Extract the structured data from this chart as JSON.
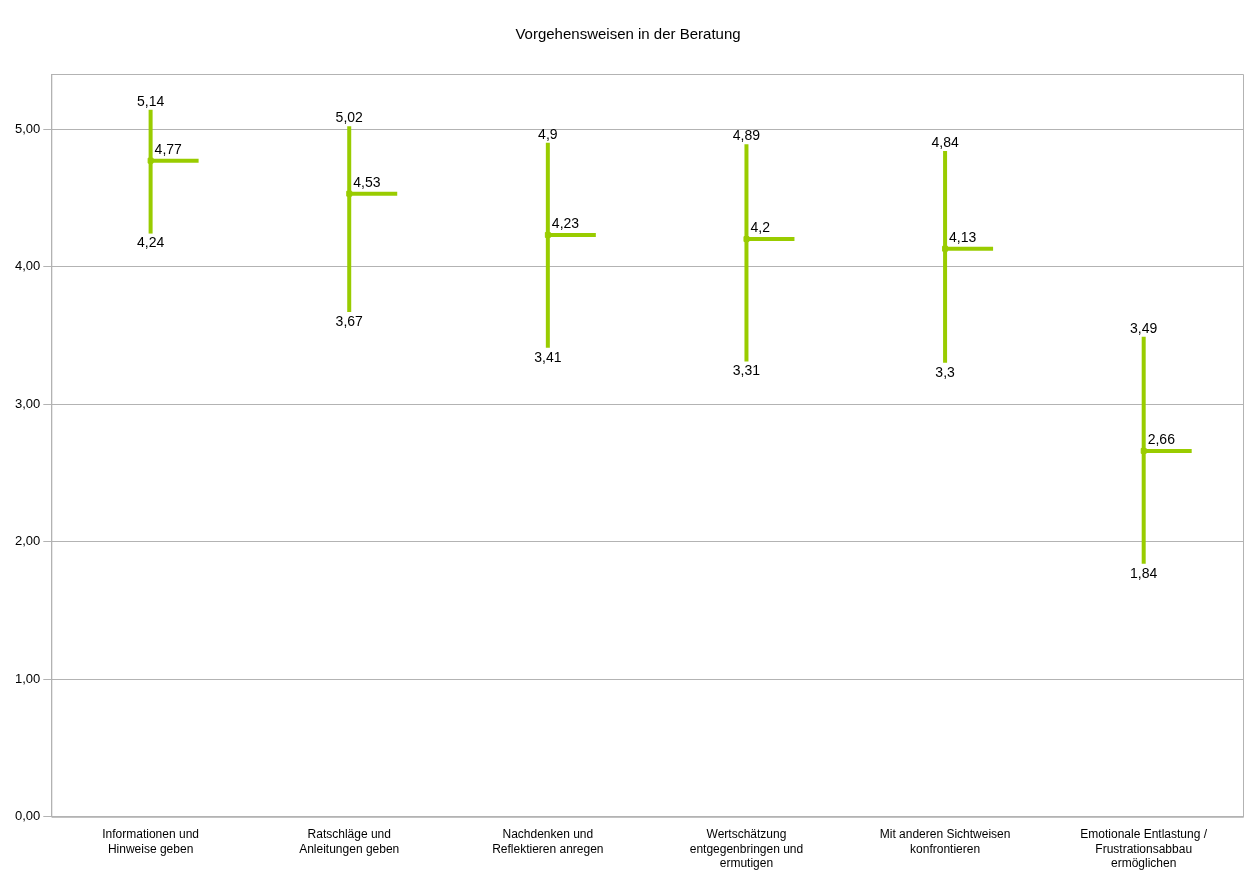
{
  "chart_data": {
    "type": "scatter",
    "title": "Vorgehensweisen in der Beratung",
    "categories": [
      "Informationen und Hinweise geben",
      "Ratschläge und Anleitungen geben",
      "Nachdenken und Reflektieren anregen",
      "Wertschätzung entgegenbringen und ermutigen",
      "Mit anderen Sichtweisen konfrontieren",
      "Emotionale Entlastung / Frustrationsabbau ermöglichen"
    ],
    "values": [
      4.77,
      4.53,
      4.23,
      4.2,
      4.13,
      2.66
    ],
    "errors": [
      [
        4.24,
        5.14
      ],
      [
        3.67,
        5.02
      ],
      [
        3.41,
        4.9
      ],
      [
        3.31,
        4.89
      ],
      [
        3.3,
        4.84
      ],
      [
        1.84,
        3.49
      ]
    ],
    "value_labels": [
      "4,77",
      "4,53",
      "4,23",
      "4,2",
      "4,13",
      "2,66"
    ],
    "color": "#99cc00",
    "marker": "square",
    "ylim": [
      0,
      5.4
    ],
    "yticks": [
      {
        "value": 0,
        "label": "0,00"
      },
      {
        "value": 1,
        "label": "1,00"
      },
      {
        "value": 2,
        "label": "2,00"
      },
      {
        "value": 3,
        "label": "3,00"
      },
      {
        "value": 4,
        "label": "4,00"
      },
      {
        "value": 5,
        "label": "5,00"
      }
    ],
    "grid": "y",
    "annotations": [
      {
        "text": "5,14",
        "x": "Informationen und Hinweise geben",
        "y": 5.14
      },
      {
        "text": "4,24",
        "x": "Informationen und Hinweise geben",
        "y": 4.24
      },
      {
        "text": "5,02",
        "x": "Ratschläge und Anleitungen geben",
        "y": 5.02
      },
      {
        "text": "3,67",
        "x": "Ratschläge und Anleitungen geben",
        "y": 3.67
      },
      {
        "text": "4,9",
        "x": "Nachdenken und Reflektieren anregen",
        "y": 4.9
      },
      {
        "text": "3,41",
        "x": "Nachdenken und Reflektieren anregen",
        "y": 3.41
      },
      {
        "text": "4,89",
        "x": "Wertschätzung entgegenbringen und ermutigen",
        "y": 4.89
      },
      {
        "text": "3,31",
        "x": "Wertschätzung entgegenbringen und ermutigen",
        "y": 3.31
      },
      {
        "text": "4,84",
        "x": "Mit anderen Sichtweisen konfrontieren",
        "y": 4.84
      },
      {
        "text": "3,3",
        "x": "Mit anderen Sichtweisen konfrontieren",
        "y": 3.3
      },
      {
        "text": "3,49",
        "x": "Emotionale Entlastung / Frustrationsabbau ermöglichen",
        "y": 3.49
      },
      {
        "text": "1,84",
        "x": "Emotionale Entlastung / Frustrationsabbau ermöglichen",
        "y": 1.84
      }
    ]
  }
}
